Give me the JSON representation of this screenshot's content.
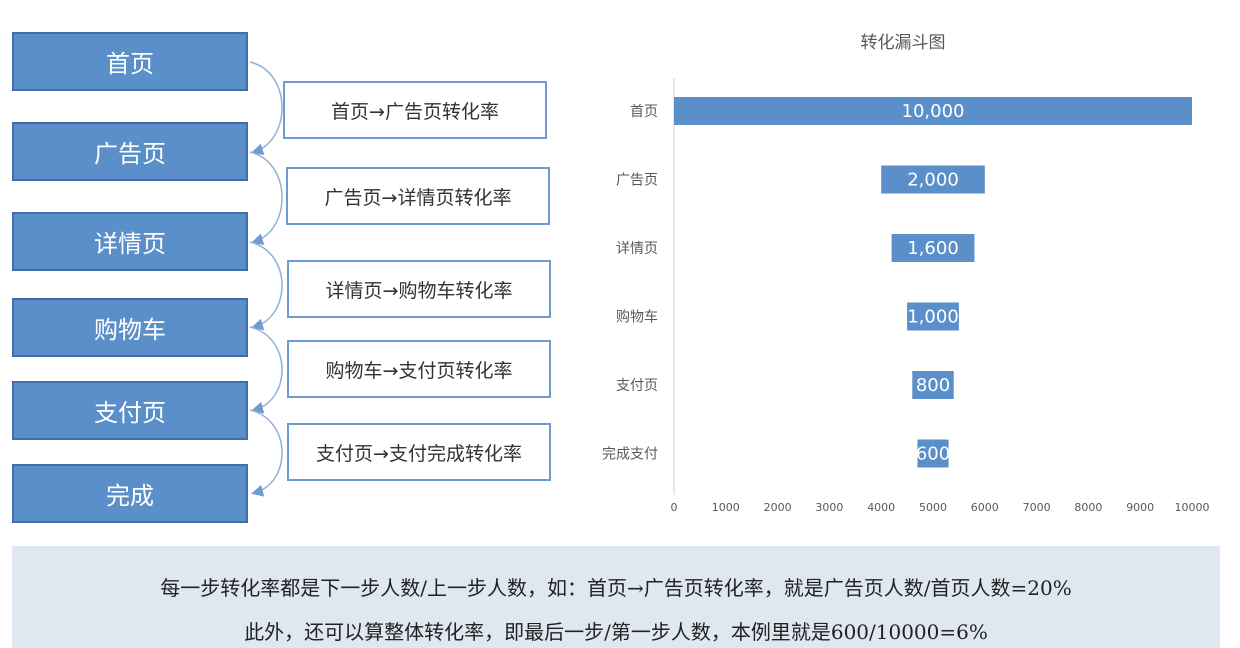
{
  "stages": [
    "首页",
    "广告页",
    "详情页",
    "购物车",
    "支付页",
    "完成"
  ],
  "rates": [
    "首页→广告页转化率",
    "广告页→详情页转化率",
    "详情页→购物车转化率",
    "购物车→支付页转化率",
    "支付页→支付完成转化率"
  ],
  "chart_data": {
    "type": "bar",
    "title": "转化漏斗图",
    "categories": [
      "首页",
      "广告页",
      "详情页",
      "购物车",
      "支付页",
      "完成支付"
    ],
    "values": [
      10000,
      2000,
      1600,
      1000,
      800,
      600
    ],
    "value_labels": [
      "10,000",
      "2,000",
      "1,600",
      "1,000",
      "800",
      "600"
    ],
    "xlim": [
      0,
      10000
    ],
    "xticks": [
      0,
      1000,
      2000,
      3000,
      4000,
      5000,
      6000,
      7000,
      8000,
      9000,
      10000
    ],
    "grid": false,
    "bar_color": "#5b8fc9",
    "orientation": "horizontal-centered"
  },
  "note": {
    "line1": "每一步转化率都是下一步人数/上一步人数，如：首页→广告页转化率，就是广告页人数/首页人数=20%",
    "line2": "此外，还可以算整体转化率，即最后一步/第一步人数，本例里就是600/10000=6%"
  },
  "colors": {
    "stage_fill": "#5b8fc9",
    "stage_border": "#3f6fa8",
    "rate_border": "#6f9bd0",
    "note_bg": "#dfe7f1"
  }
}
